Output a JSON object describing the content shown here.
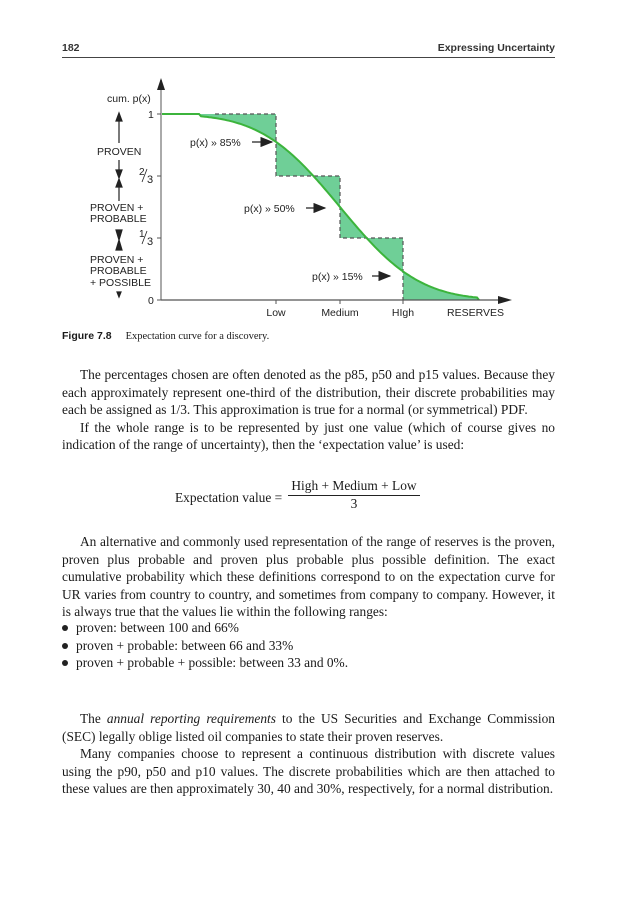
{
  "header": {
    "page_number": "182",
    "running_title": "Expressing Uncertainty"
  },
  "chart_data": {
    "type": "line",
    "ylabel": "cum. p(x)",
    "xlabel": "RESERVES",
    "y_ticks": [
      {
        "label": "1",
        "num": "",
        "den": ""
      },
      {
        "label": "",
        "num": "2",
        "den": "3"
      },
      {
        "label": "",
        "num": "1",
        "den": "3"
      },
      {
        "label": "0",
        "num": "",
        "den": ""
      }
    ],
    "y_values": [
      1,
      0.6667,
      0.3333,
      0
    ],
    "x_ticks": [
      "Low",
      "Medium",
      "HIgh"
    ],
    "step_levels": [
      1,
      0.6667,
      0.3333,
      0
    ],
    "curve_values_at_ticks": [
      0.85,
      0.5,
      0.15
    ],
    "annotations": [
      "p(x) » 85%",
      "p(x) » 50%",
      "p(x) » 15%"
    ],
    "category_labels": [
      [
        "PROVEN"
      ],
      [
        "PROVEN +",
        "PROBABLE"
      ],
      [
        "PROVEN +",
        "PROBABLE",
        "+ POSSIBLE"
      ]
    ],
    "colors": {
      "curve": "#3cb43c",
      "fill": "#6fcf97",
      "step": "#555555"
    }
  },
  "caption": {
    "label": "Figure 7.8",
    "text": "Expectation curve for a discovery."
  },
  "paragraphs": {
    "p1": "The percentages chosen are often denoted as the p85, p50 and p15 values. Because they each approximately represent one-third of the distribution, their discrete probabilities may each be assigned as 1/3. This approximation is true for a normal (or symmetrical) PDF.",
    "p2": "If the whole range is to be represented by just one value (which of course gives no indication of the range of uncertainty), then the ‘expectation value’ is used:",
    "p3": "An alternative and commonly used representation of the range of reserves is the proven, proven plus probable and proven plus probable plus possible definition. The exact cumulative probability which these definitions correspond to on the expectation curve for UR varies from country to country, and sometimes from company to company. However, it is always true that the values lie within the following ranges:",
    "p4_pre": "The ",
    "p4_em": "annual reporting requirements",
    "p4_post": " to the US Securities and Exchange Commission (SEC) legally oblige listed oil companies to state their proven reserves.",
    "p5": "Many companies choose to represent a continuous distribution with discrete values using the p90, p50 and p10 values. The discrete probabilities which are then attached to these values are then approximately 30, 40 and 30%, respectively, for a normal distribution."
  },
  "equation": {
    "lhs": "Expectation value =",
    "numerator": "High + Medium + Low",
    "denominator": "3"
  },
  "bullets": [
    "proven: between 100 and 66%",
    "proven + probable: between 66 and 33%",
    "proven + probable + possible: between 33 and 0%."
  ]
}
